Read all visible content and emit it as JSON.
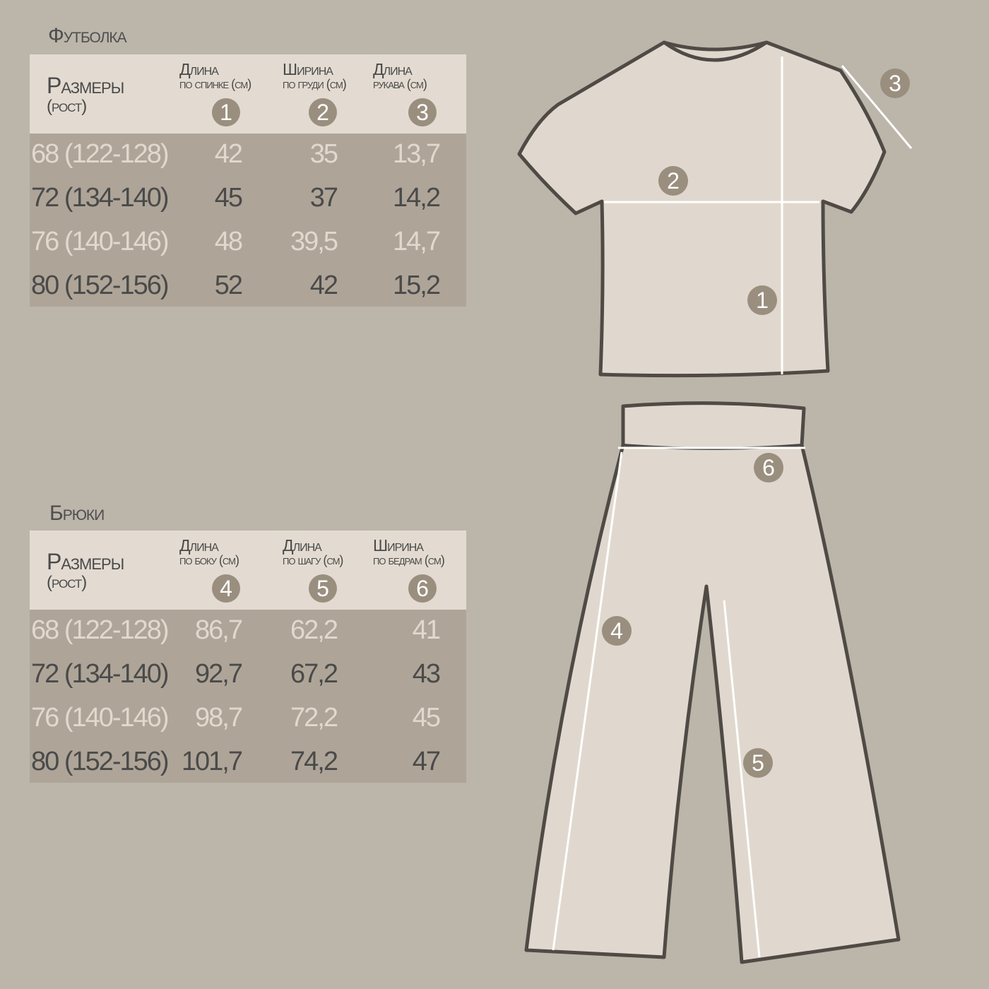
{
  "tshirt": {
    "title": "Футболка",
    "size_label": "Размеры",
    "size_sub": "(рост)",
    "columns": [
      {
        "line1": "Длина",
        "line2": "по спинке (см)",
        "badge": "1"
      },
      {
        "line1": "Ширина",
        "line2": "по груди (см)",
        "badge": "2"
      },
      {
        "line1": "Длина",
        "line2": "рукава (см)",
        "badge": "3"
      }
    ],
    "rows": [
      {
        "size": "68 (122-128)",
        "values": [
          "42",
          "35",
          "13,7"
        ]
      },
      {
        "size": "72 (134-140)",
        "values": [
          "45",
          "37",
          "14,2"
        ]
      },
      {
        "size": "76 (140-146)",
        "values": [
          "48",
          "39,5",
          "14,7"
        ]
      },
      {
        "size": "80 (152-156)",
        "values": [
          "52",
          "42",
          "15,2"
        ]
      }
    ]
  },
  "pants": {
    "title": "Брюки",
    "size_label": "Размеры",
    "size_sub": "(рост)",
    "columns": [
      {
        "line1": "Длина",
        "line2": "по боку (см)",
        "badge": "4"
      },
      {
        "line1": "Длина",
        "line2": "по шагу (см)",
        "badge": "5"
      },
      {
        "line1": "Ширина",
        "line2": "по бедрам (см)",
        "badge": "6"
      }
    ],
    "rows": [
      {
        "size": "68 (122-128)",
        "values": [
          "86,7",
          "62,2",
          "41"
        ]
      },
      {
        "size": "72 (134-140)",
        "values": [
          "92,7",
          "67,2",
          "43"
        ]
      },
      {
        "size": "76 (140-146)",
        "values": [
          "98,7",
          "72,2",
          "45"
        ]
      },
      {
        "size": "80 (152-156)",
        "values": [
          "101,7",
          "74,2",
          "47"
        ]
      }
    ]
  },
  "diagram": {
    "badges": [
      "1",
      "2",
      "3",
      "4",
      "5",
      "6"
    ]
  },
  "colors": {
    "background": "#bcb5aa",
    "header": "#e3dbd1",
    "body": "#aea598",
    "badge": "#9a8f7f",
    "garment": "#e0d8ce",
    "outline": "#4f4a45"
  }
}
